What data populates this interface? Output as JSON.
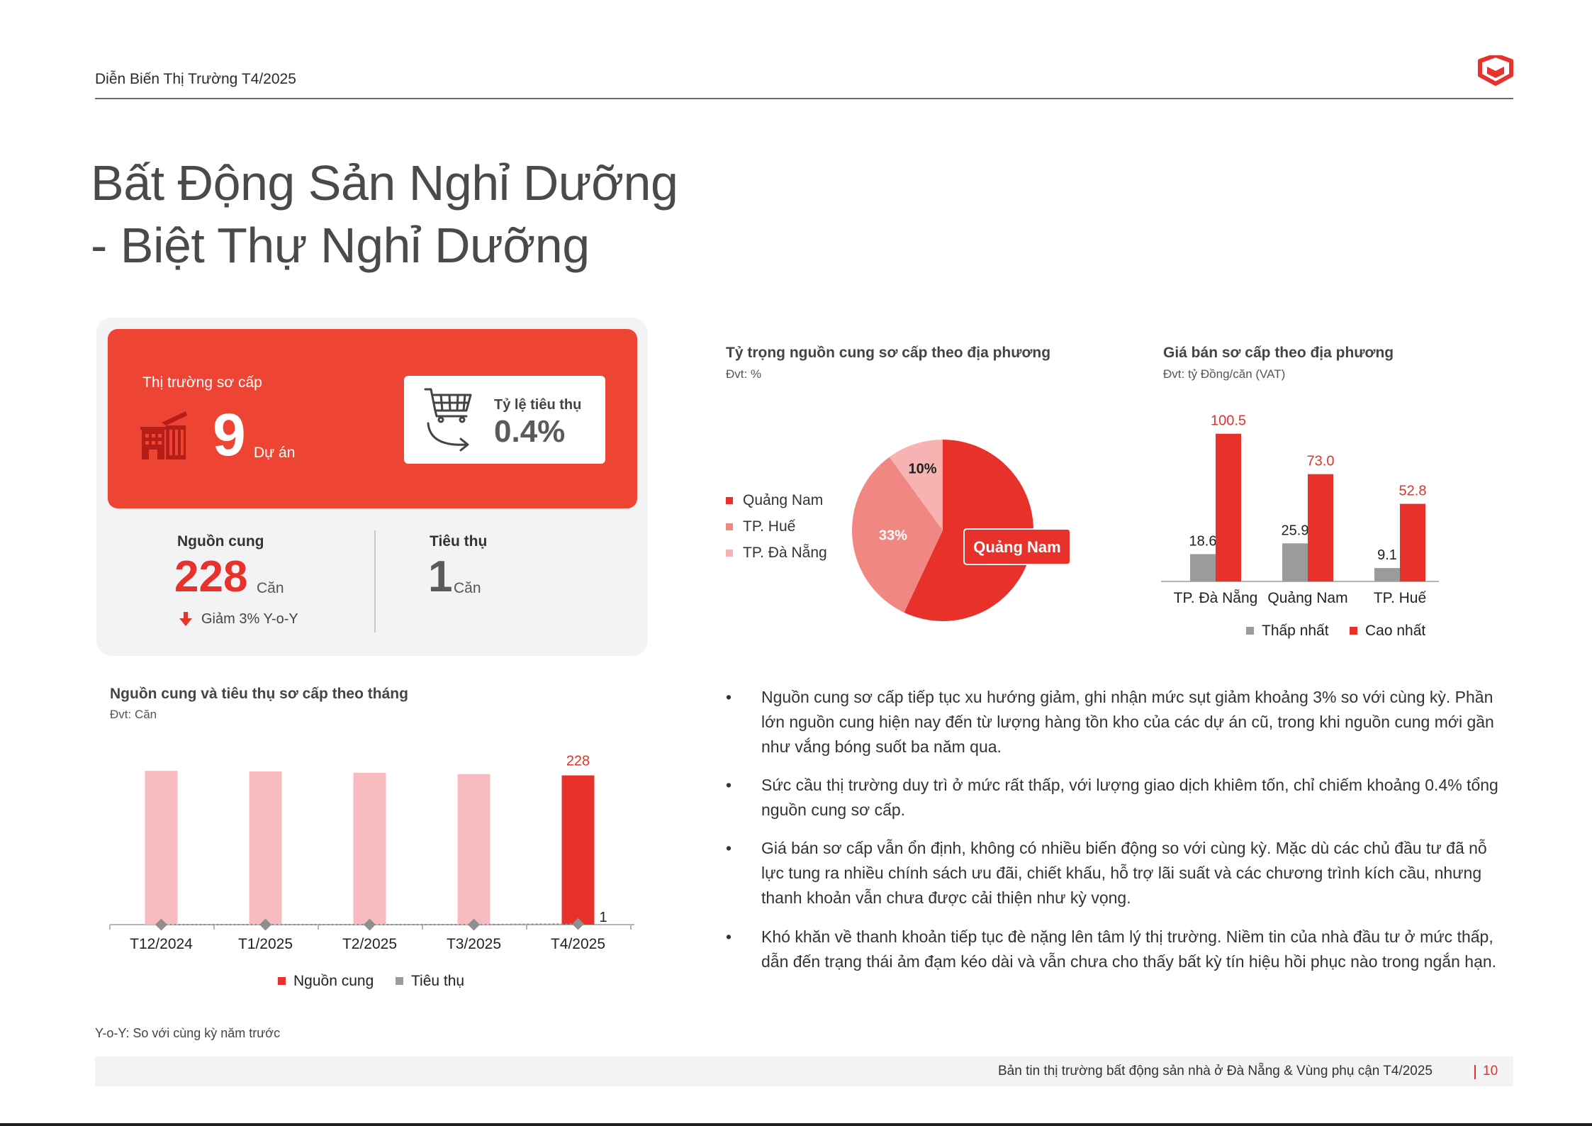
{
  "header": {
    "title": "Diễn Biến Thị Trường T4/2025"
  },
  "page_title": {
    "line1": "Bất Động Sản Nghỉ Dưỡng",
    "line2": "- Biệt Thự Nghỉ Dưỡng"
  },
  "primary_market": {
    "label": "Thị trường sơ cấp",
    "projects_value": "9",
    "projects_unit": "Dự án",
    "absorption_label": "Tỷ lệ tiêu thụ",
    "absorption_value": "0.4%",
    "supply_label": "Nguồn cung",
    "supply_value": "228",
    "supply_unit": "Căn",
    "supply_change": "Giảm 3% Y-o-Y",
    "sold_label": "Tiêu thụ",
    "sold_value": "1",
    "sold_unit": "Căn"
  },
  "colors": {
    "accent": "#e8312a",
    "card_red": "#ee4434",
    "light_pink": "#f8bcc0",
    "grey": "#9b9b9b"
  },
  "pie_chart": {
    "title": "Tỷ trọng nguồn cung sơ cấp theo địa phương",
    "unit": "Đvt: %",
    "callout": "Quảng Nam"
  },
  "price_chart": {
    "title": "Giá bán sơ cấp theo địa phương",
    "unit": "Đvt: tỷ Đồng/căn (VAT)"
  },
  "monthly_chart": {
    "title": "Nguồn cung và tiêu thụ sơ cấp theo tháng",
    "unit": "Đvt: Căn"
  },
  "chart_data": [
    {
      "type": "pie",
      "categories": [
        "Quảng Nam",
        "TP. Huế",
        "TP. Đà Nẵng"
      ],
      "values": [
        57,
        33,
        10
      ],
      "labels": [
        "57%",
        "33%",
        "10%"
      ],
      "colors": [
        "#e8312a",
        "#f08783",
        "#f7b2b2"
      ],
      "title": "Tỷ trọng nguồn cung sơ cấp theo địa phương",
      "legend": "left"
    },
    {
      "type": "bar",
      "categories": [
        "TP. Đà Nẵng",
        "Quảng Nam",
        "TP. Huế"
      ],
      "series": [
        {
          "name": "Thấp nhất",
          "values": [
            18.6,
            25.9,
            9.1
          ],
          "labels": [
            "18.6",
            "25.9",
            "9.1"
          ],
          "color": "#9b9b9b"
        },
        {
          "name": "Cao nhất",
          "values": [
            100.5,
            73.0,
            52.8
          ],
          "labels": [
            "100.5",
            "73.0",
            "52.8"
          ],
          "color": "#e8312a"
        }
      ],
      "title": "Giá bán sơ cấp theo địa phương",
      "ylim": [
        0,
        110
      ],
      "legend": "bottom"
    },
    {
      "type": "bar",
      "categories": [
        "T12/2024",
        "T1/2025",
        "T2/2025",
        "T3/2025",
        "T4/2025"
      ],
      "series": [
        {
          "name": "Nguồn cung",
          "values": [
            235,
            234,
            232,
            230,
            228
          ],
          "colors": [
            "#f8bcc0",
            "#f8bcc0",
            "#f8bcc0",
            "#f8bcc0",
            "#e8312a"
          ]
        },
        {
          "name": "Tiêu thụ",
          "values": [
            0,
            0,
            0,
            0,
            1
          ],
          "color": "#9b9b9b"
        }
      ],
      "point_labels": {
        "supply_last": "228",
        "sold_last": "1"
      },
      "title": "Nguồn cung và tiêu thụ sơ cấp theo tháng",
      "ylim": [
        0,
        260
      ],
      "legend": "bottom"
    }
  ],
  "bullets": [
    "Nguồn cung sơ cấp tiếp tục xu hướng giảm, ghi nhận mức sụt giảm khoảng 3% so với cùng kỳ. Phần lớn nguồn cung hiện nay đến từ lượng hàng tồn kho của các dự án cũ, trong khi nguồn cung mới gần như vắng bóng suốt ba năm qua.",
    "Sức cầu thị trường duy trì ở mức rất thấp, với lượng giao dịch khiêm tốn, chỉ chiếm khoảng 0.4% tổng nguồn cung sơ cấp.",
    "Giá bán sơ cấp vẫn ổn định, không có nhiều biến động so với cùng kỳ. Mặc dù các chủ đầu tư đã nỗ lực tung ra nhiều chính sách ưu đãi, chiết khấu, hỗ trợ lãi suất và các chương trình kích cầu, nhưng thanh khoản vẫn chưa được cải thiện như kỳ vọng.",
    "Khó khăn về thanh khoản tiếp tục đè nặng lên tâm lý thị trường. Niềm tin của nhà đầu tư ở mức thấp, dẫn đến trạng thái ảm đạm kéo dài và vẫn chưa cho thấy bất kỳ tín hiệu hồi phục nào trong ngắn hạn."
  ],
  "bullet_symbol": "•",
  "footnote": "Y-o-Y: So với cùng kỳ năm trước",
  "footer": {
    "text": "Bản tin thị trường bất động sản nhà ở Đà Nẵng & Vùng phụ cận T4/2025",
    "page": "10"
  }
}
